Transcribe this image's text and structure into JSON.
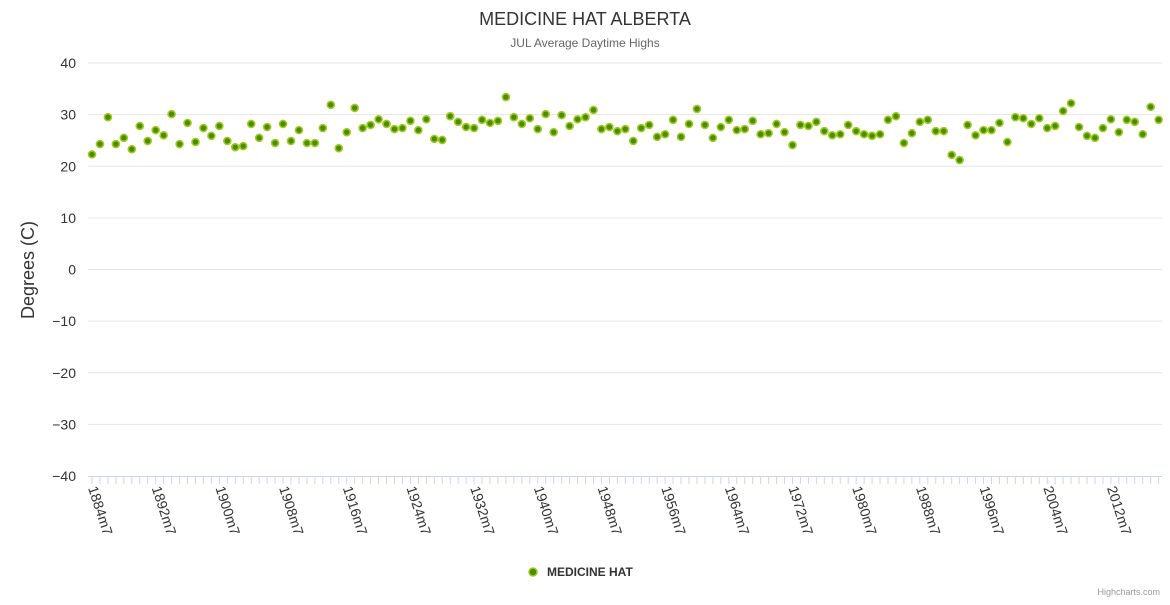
{
  "chart_data": {
    "type": "scatter",
    "title": "MEDICINE HAT ALBERTA",
    "subtitle": "JUL Average Daytime Highs",
    "ylabel": "Degrees (C)",
    "xlabel": "",
    "ylim": [
      -40,
      40
    ],
    "yticks": [
      40,
      30,
      20,
      10,
      0,
      -10,
      -20,
      -30,
      -40
    ],
    "x_start_year": 1884,
    "x_tick_labels": [
      "1884m7",
      "1892m7",
      "1900m7",
      "1908m7",
      "1916m7",
      "1924m7",
      "1932m7",
      "1940m7",
      "1948m7",
      "1956m7",
      "1964m7",
      "1972m7",
      "1980m7",
      "1988m7",
      "1996m7",
      "2004m7",
      "2012m7"
    ],
    "grid": true,
    "legend_position": "bottom-center",
    "series": [
      {
        "name": "MEDICINE HAT",
        "color": "#7cb500",
        "values": [
          22.3,
          24.3,
          29.5,
          24.3,
          25.5,
          23.3,
          27.8,
          24.9,
          27.0,
          26.0,
          30.1,
          24.3,
          28.4,
          24.7,
          27.4,
          25.9,
          27.8,
          24.9,
          23.7,
          23.9,
          28.2,
          25.5,
          27.6,
          24.5,
          28.2,
          24.9,
          27.0,
          24.5,
          24.5,
          27.4,
          31.9,
          23.5,
          26.6,
          31.3,
          27.4,
          28.0,
          29.1,
          28.2,
          27.2,
          27.4,
          28.8,
          27.0,
          29.1,
          25.3,
          25.1,
          29.7,
          28.6,
          27.6,
          27.4,
          29.0,
          28.4,
          28.8,
          33.4,
          29.5,
          28.2,
          29.3,
          27.2,
          30.1,
          26.6,
          29.9,
          27.8,
          29.1,
          29.5,
          30.9,
          27.2,
          27.6,
          26.8,
          27.2,
          24.9,
          27.4,
          28.0,
          25.7,
          26.2,
          29.0,
          25.7,
          28.2,
          31.1,
          28.0,
          25.5,
          27.6,
          29.0,
          27.0,
          27.2,
          28.8,
          26.2,
          26.4,
          28.2,
          26.6,
          24.1,
          28.0,
          27.8,
          28.6,
          26.8,
          26.0,
          26.2,
          28.0,
          26.8,
          26.2,
          25.9,
          26.2,
          29.0,
          29.7,
          24.5,
          26.4,
          28.6,
          29.0,
          26.8,
          26.8,
          22.2,
          21.2,
          28.0,
          26.0,
          27.0,
          27.0,
          28.4,
          24.7,
          29.5,
          29.3,
          28.2,
          29.3,
          27.4,
          27.8,
          30.7,
          32.2,
          27.6,
          25.9,
          25.5,
          27.4,
          29.1,
          26.6,
          29.0,
          28.6,
          26.2,
          31.5,
          29.0
        ]
      }
    ]
  },
  "credits": "Highcharts.com"
}
